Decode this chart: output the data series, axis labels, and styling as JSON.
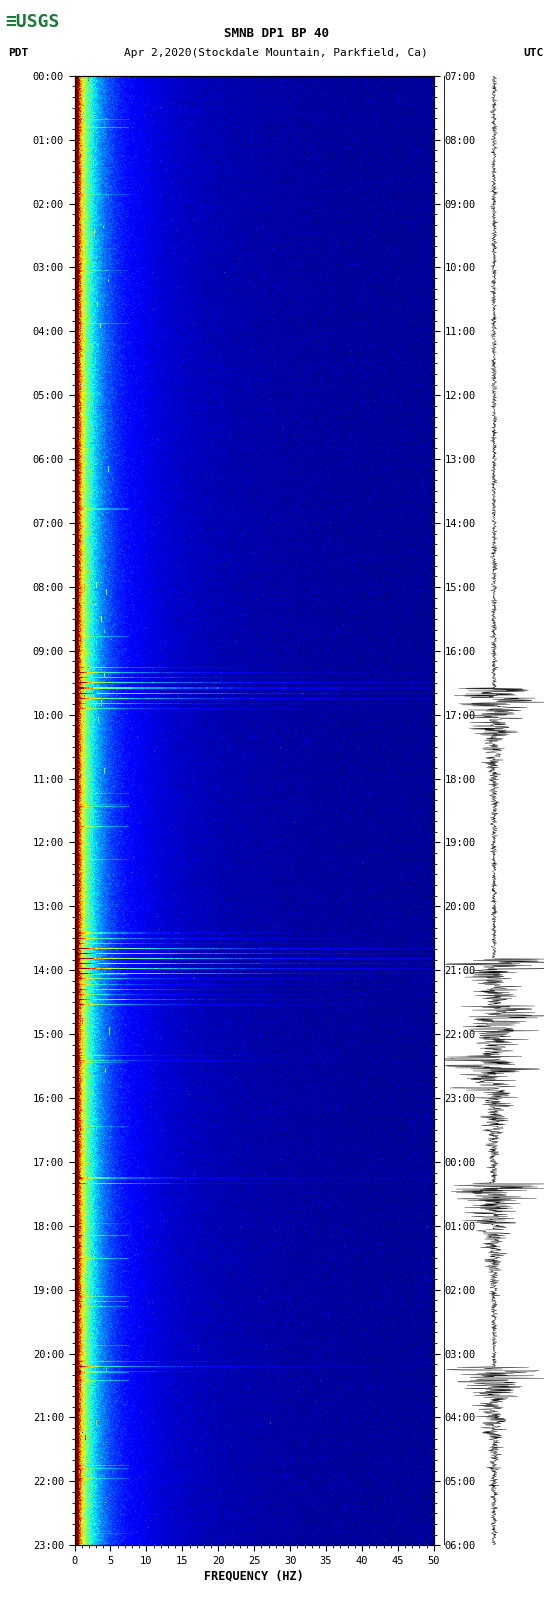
{
  "title_line1": "SMNB DP1 BP 40",
  "title_line2": "PDT   Apr 2,2020(Stockdale Mountain, Parkfield, Ca)       UTC",
  "xlabel": "FREQUENCY (HZ)",
  "xticks": [
    0,
    5,
    10,
    15,
    20,
    25,
    30,
    35,
    40,
    45,
    50
  ],
  "xlim": [
    0,
    50
  ],
  "left_yticks": [
    "00:00",
    "01:00",
    "02:00",
    "03:00",
    "04:00",
    "05:00",
    "06:00",
    "07:00",
    "08:00",
    "09:00",
    "10:00",
    "11:00",
    "12:00",
    "13:00",
    "14:00",
    "15:00",
    "16:00",
    "17:00",
    "18:00",
    "19:00",
    "20:00",
    "21:00",
    "22:00",
    "23:00"
  ],
  "right_yticks": [
    "07:00",
    "08:00",
    "09:00",
    "10:00",
    "11:00",
    "12:00",
    "13:00",
    "14:00",
    "15:00",
    "16:00",
    "17:00",
    "18:00",
    "19:00",
    "20:00",
    "21:00",
    "22:00",
    "23:00",
    "00:00",
    "01:00",
    "02:00",
    "03:00",
    "04:00",
    "05:00",
    "06:00"
  ],
  "fig_bg": "#ffffff",
  "usgs_green": "#1a7a3a",
  "n_time": 1440,
  "n_freq": 500,
  "noise_seed": 42,
  "vmin": 0.0,
  "vmax": 2.5,
  "eq_times_strong": [
    595,
    600,
    605,
    610,
    855,
    860,
    865,
    870,
    875,
    880
  ],
  "eq_times_weak": [
    580,
    585,
    590,
    615,
    620,
    840,
    845,
    850,
    885,
    890,
    895,
    900,
    905,
    910,
    960,
    965,
    1080,
    1085,
    1260,
    1265,
    1270
  ],
  "wave_eq_times": [
    600,
    865,
    910,
    960,
    1085,
    1265
  ],
  "wave_noise_scale": 0.04
}
